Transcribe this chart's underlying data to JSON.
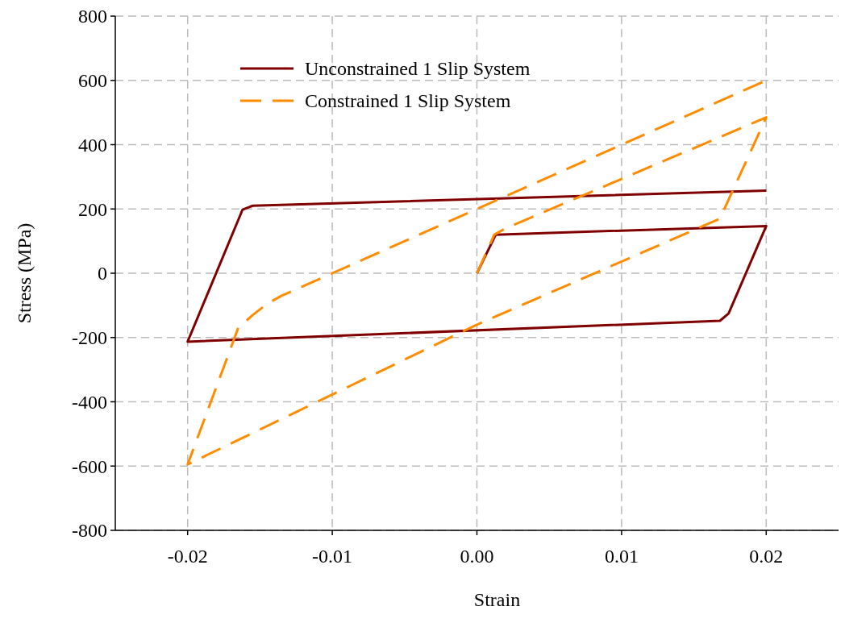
{
  "chart_data": {
    "type": "line",
    "xlabel": "Strain",
    "ylabel": "Stress (MPa)",
    "xlim": [
      -0.025,
      0.025
    ],
    "xticks": [
      -0.02,
      -0.01,
      {
        "value": 0,
        "label": "0.00"
      },
      0.01,
      0.02
    ],
    "ylim": [
      -800,
      800
    ],
    "yticks": [
      -800,
      -600,
      -400,
      -200,
      0,
      200,
      400,
      600,
      800
    ],
    "grid": true,
    "legend": "top left",
    "marker": "none",
    "series": [
      {
        "name": "Unconstrained 1 Slip System",
        "color": "#800000",
        "line_style": "solid",
        "x": [
          0,
          0.0013,
          0.02,
          0.0174,
          0.0168,
          -0.02,
          -0.0162,
          -0.0155,
          0.02
        ],
        "values": [
          0,
          120,
          147,
          -125,
          -148,
          -213,
          198,
          210,
          257
        ]
      },
      {
        "name": "Constrained 1 Slip System",
        "color": "#ff8c00",
        "line_style": "dashed",
        "x": [
          0,
          0.0012,
          0.002,
          0.02,
          0.0168,
          0.0,
          -0.02,
          -0.0165,
          -0.0155,
          -0.0145,
          -0.0135,
          -0.01,
          0.02
        ],
        "values": [
          0,
          120,
          140,
          485,
          170,
          -160,
          -595,
          -170,
          -130,
          -95,
          -70,
          0,
          600
        ]
      }
    ]
  }
}
